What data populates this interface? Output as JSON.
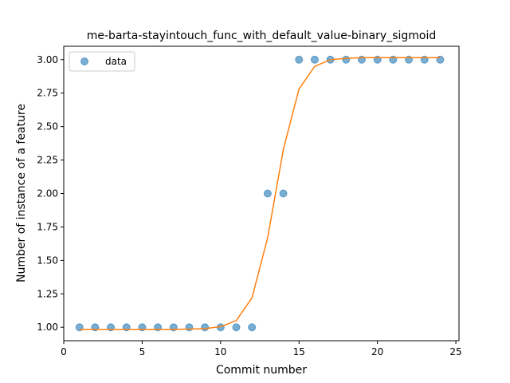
{
  "chart_data": {
    "type": "scatter",
    "title": "me-barta-stayintouch_func_with_default_value-binary_sigmoid",
    "xlabel": "Commit number",
    "ylabel": "Number of instance of a feature",
    "xlim": [
      0,
      25.2
    ],
    "ylim": [
      0.9,
      3.1
    ],
    "xticks": [
      0,
      5,
      10,
      15,
      20,
      25
    ],
    "yticks": [
      1.0,
      1.25,
      1.5,
      1.75,
      2.0,
      2.25,
      2.5,
      2.75,
      3.0
    ],
    "ytick_labels": [
      "1.00",
      "1.25",
      "1.50",
      "1.75",
      "2.00",
      "2.25",
      "2.50",
      "2.75",
      "3.00"
    ],
    "grid": false,
    "legend": {
      "position": "top-left",
      "entries": [
        "data"
      ]
    },
    "series": [
      {
        "name": "data",
        "kind": "scatter",
        "color": "#1f77b4",
        "x": [
          1,
          2,
          3,
          4,
          5,
          6,
          7,
          8,
          9,
          10,
          11,
          12,
          13,
          14,
          15,
          16,
          17,
          18,
          19,
          20,
          21,
          22,
          23,
          24
        ],
        "y": [
          1,
          1,
          1,
          1,
          1,
          1,
          1,
          1,
          1,
          1,
          1,
          1,
          2,
          2,
          3,
          3,
          3,
          3,
          3,
          3,
          3,
          3,
          3,
          3
        ]
      },
      {
        "kind": "line",
        "color": "#ff7f0e",
        "x": [
          1,
          2,
          3,
          4,
          5,
          6,
          7,
          8,
          9,
          10,
          11,
          12,
          13,
          14,
          15,
          16,
          17,
          18,
          19,
          20,
          21,
          22,
          23,
          24
        ],
        "y": [
          0.985,
          0.985,
          0.985,
          0.985,
          0.985,
          0.985,
          0.985,
          0.987,
          0.99,
          1.005,
          1.05,
          1.22,
          1.67,
          2.33,
          2.78,
          2.95,
          3.0,
          3.01,
          3.015,
          3.015,
          3.015,
          3.015,
          3.015,
          3.015
        ]
      }
    ]
  }
}
